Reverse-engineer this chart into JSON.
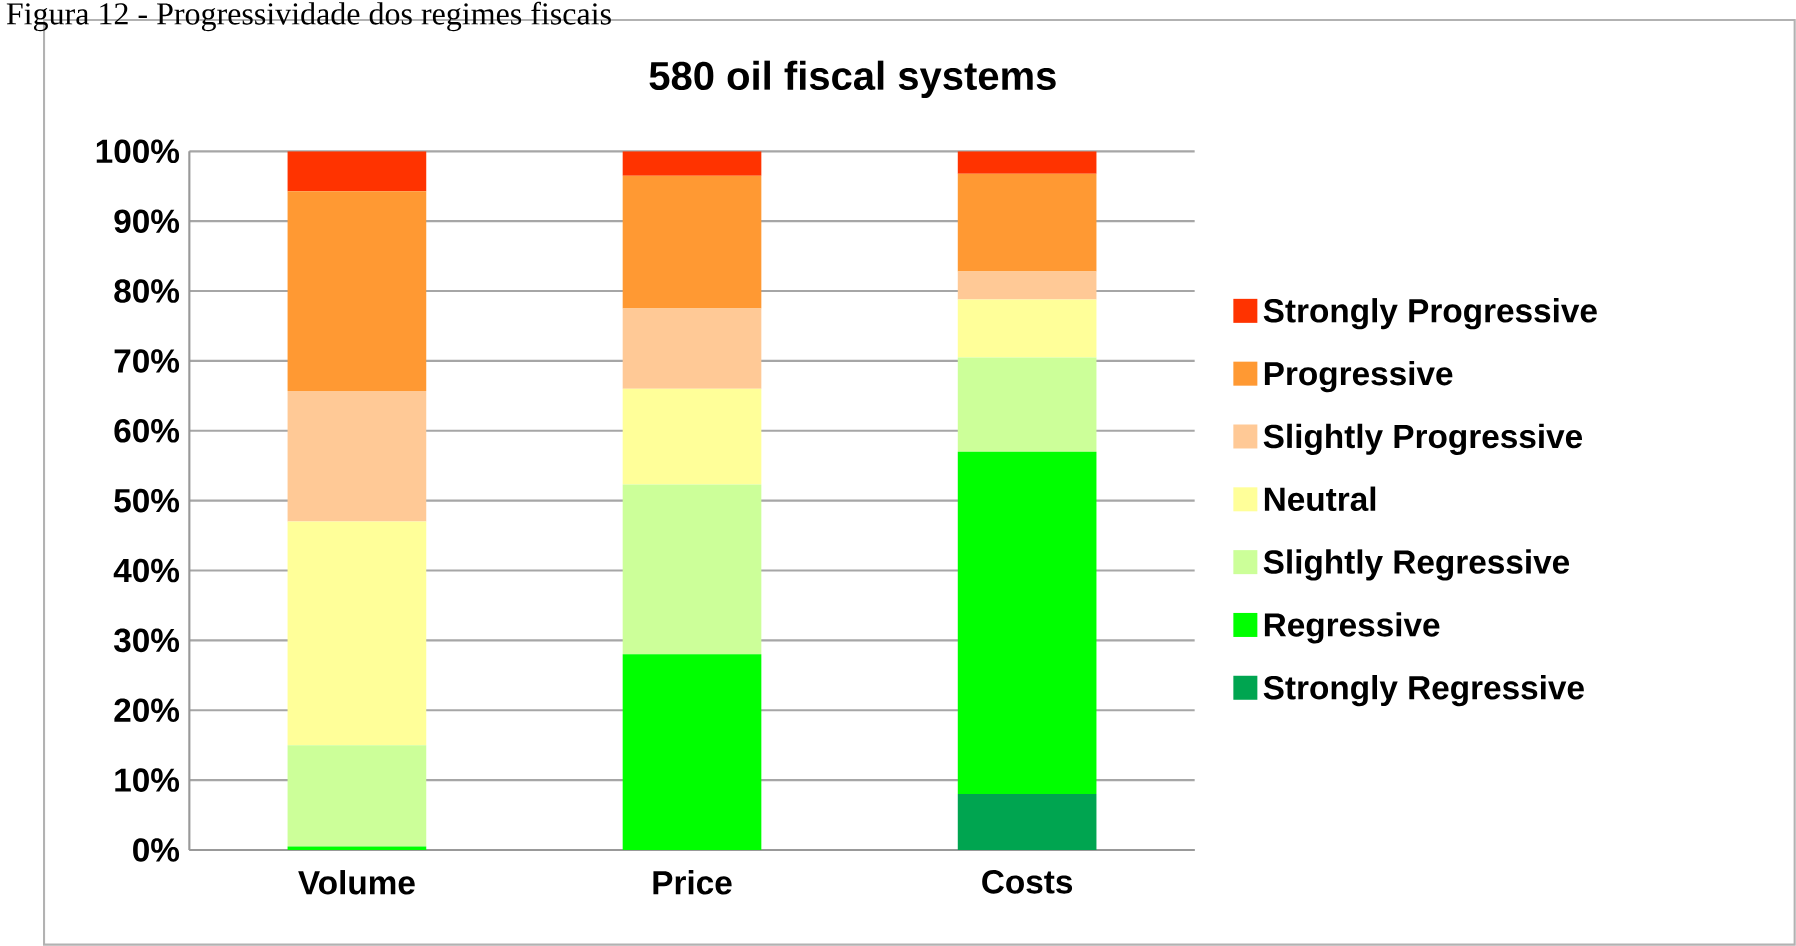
{
  "chart_data": {
    "type": "bar",
    "title": "580 oil fiscal systems",
    "stacked": true,
    "grid": "y",
    "legend": "right",
    "annotations": [
      "Figura 12 - Progressividade dos regimes fiscais"
    ],
    "categories": [
      "Volume",
      "Price",
      "Costs"
    ],
    "ylim": [
      0,
      100
    ],
    "yticks": [
      {
        "value": 0,
        "label": "0%"
      },
      {
        "value": 10,
        "label": "10%"
      },
      {
        "value": 20,
        "label": "20%"
      },
      {
        "value": 30,
        "label": "30%"
      },
      {
        "value": 40,
        "label": "40%"
      },
      {
        "value": 50,
        "label": "50%"
      },
      {
        "value": 60,
        "label": "60%"
      },
      {
        "value": 70,
        "label": "70%"
      },
      {
        "value": 80,
        "label": "80%"
      },
      {
        "value": 90,
        "label": "90%"
      },
      {
        "value": 100,
        "label": "100%"
      }
    ],
    "series": [
      {
        "name": "Strongly Regressive",
        "color": "#00a550",
        "values": [
          0,
          0,
          8
        ]
      },
      {
        "name": "Regressive",
        "color": "#00ff00",
        "values": [
          0.5,
          28,
          49
        ]
      },
      {
        "name": "Slightly Regressive",
        "color": "#ccff99",
        "values": [
          14.5,
          24.3,
          13.5
        ]
      },
      {
        "name": "Neutral",
        "color": "#ffff99",
        "values": [
          32,
          13.7,
          8.3
        ]
      },
      {
        "name": "Slightly Progressive",
        "color": "#ffc996",
        "values": [
          18.7,
          11.5,
          4
        ]
      },
      {
        "name": "Progressive",
        "color": "#ff9933",
        "values": [
          28.6,
          19,
          14
        ]
      },
      {
        "name": "Strongly Progressive",
        "color": "#ff3300",
        "values": [
          5.7,
          3.5,
          3.2
        ]
      }
    ]
  }
}
